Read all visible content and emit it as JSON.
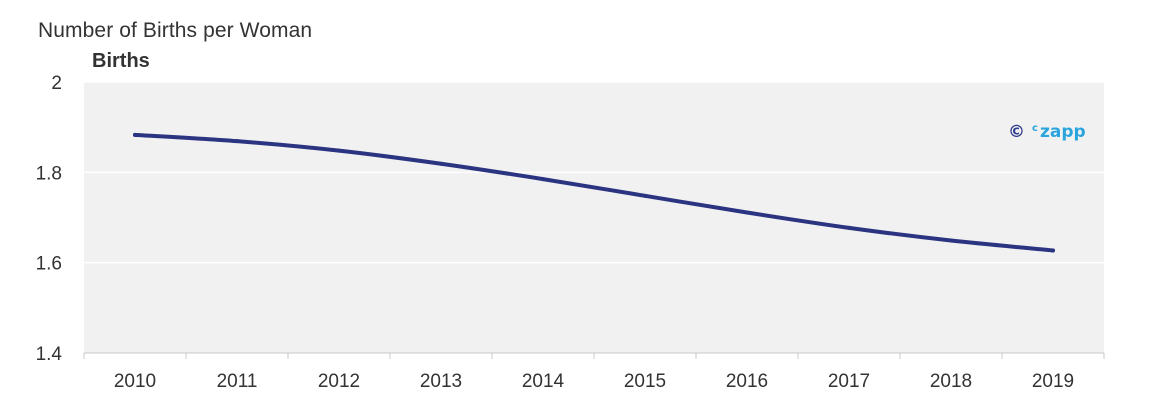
{
  "title": "Number of Births per Woman",
  "watermark": {
    "symbol": "©",
    "prefix": "c",
    "brand": "zapp",
    "symbol_color": "#2e3a8c",
    "brand_color": "#2aa4dc"
  },
  "colors": {
    "line": "#2b3480",
    "plot_background": "#f1f1f2",
    "gridline": "#ffffff",
    "axis": "#c8c8c8"
  },
  "chart_data": {
    "type": "line",
    "title": "Number of Births per Woman",
    "ylabel": "Births",
    "xlabel": "",
    "categories": [
      "2010",
      "2011",
      "2012",
      "2013",
      "2014",
      "2015",
      "2016",
      "2017",
      "2018",
      "2019"
    ],
    "series": [
      {
        "values": [
          1.883,
          1.869,
          1.848,
          1.819,
          1.785,
          1.748,
          1.711,
          1.677,
          1.649,
          1.627
        ]
      }
    ],
    "ylim": [
      1.4,
      2.0
    ],
    "yticks": [
      "1.4",
      "1.6",
      "1.8",
      "2"
    ],
    "grid": true,
    "legend": "none"
  }
}
